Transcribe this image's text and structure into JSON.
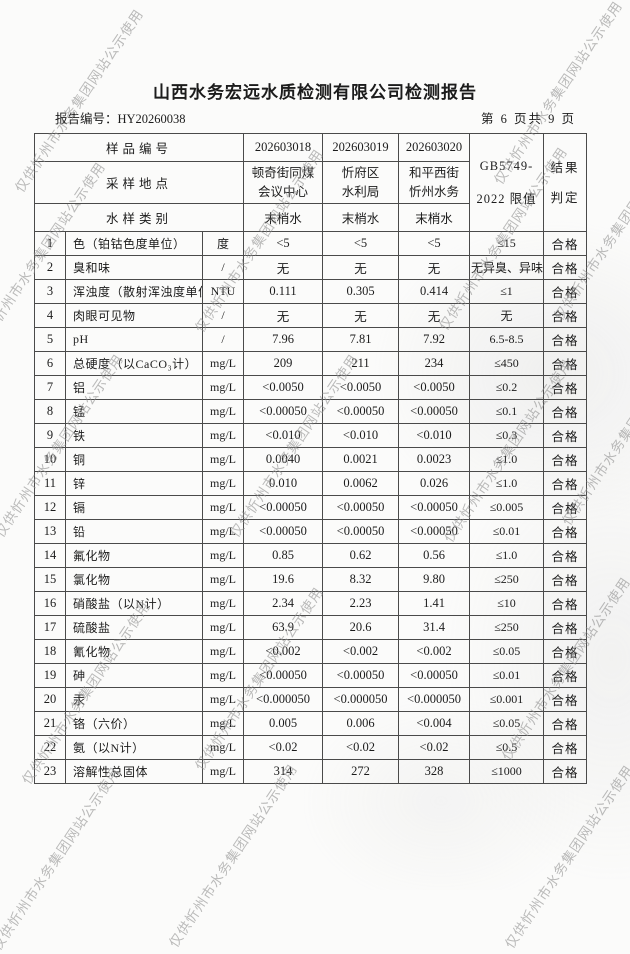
{
  "page": {
    "title": "山西水务宏远水质检测有限公司检测报告",
    "report_number": "报告编号：HY20260038",
    "page_indicator": "第 6 页共 9 页"
  },
  "watermark": {
    "text": "仅供忻州市水务集团网站公示使用",
    "color": "#8f8f8f"
  },
  "table": {
    "header": {
      "sample_id_label": "样品编号",
      "sample_ids": [
        "202603018",
        "202603019",
        "202603020"
      ],
      "location_label": "采样地点",
      "locations": [
        "顿奇街同煤\n会议中心",
        "忻府区\n水利局",
        "和平西街\n忻州水务"
      ],
      "sample_type_label": "水样类别",
      "sample_types": [
        "末梢水",
        "末梢水",
        "末梢水"
      ],
      "standard_limit": "GB5749-\n2022 限值",
      "result_verdict": "结果\n判定"
    },
    "rows": [
      {
        "no": "1",
        "param": "色（铂钴色度单位）",
        "unit": "度",
        "v1": "<5",
        "v2": "<5",
        "v3": "<5",
        "limit": "≤15",
        "verdict": "合格"
      },
      {
        "no": "2",
        "param": "臭和味",
        "unit": "/",
        "v1": "无",
        "v2": "无",
        "v3": "无",
        "limit": "无异臭、异味",
        "verdict": "合格"
      },
      {
        "no": "3",
        "param": "浑浊度（散射浑浊度单位）",
        "unit": "NTU",
        "v1": "0.111",
        "v2": "0.305",
        "v3": "0.414",
        "limit": "≤1",
        "verdict": "合格"
      },
      {
        "no": "4",
        "param": "肉眼可见物",
        "unit": "/",
        "v1": "无",
        "v2": "无",
        "v3": "无",
        "limit": "无",
        "verdict": "合格"
      },
      {
        "no": "5",
        "param": "pH",
        "unit": "/",
        "v1": "7.96",
        "v2": "7.81",
        "v3": "7.92",
        "limit": "6.5-8.5",
        "verdict": "合格"
      },
      {
        "no": "6",
        "param": "总硬度（以CaCO₃计）",
        "unit": "mg/L",
        "v1": "209",
        "v2": "211",
        "v3": "234",
        "limit": "≤450",
        "verdict": "合格"
      },
      {
        "no": "7",
        "param": "铝",
        "unit": "mg/L",
        "v1": "<0.0050",
        "v2": "<0.0050",
        "v3": "<0.0050",
        "limit": "≤0.2",
        "verdict": "合格"
      },
      {
        "no": "8",
        "param": "锰",
        "unit": "mg/L",
        "v1": "<0.00050",
        "v2": "<0.00050",
        "v3": "<0.00050",
        "limit": "≤0.1",
        "verdict": "合格"
      },
      {
        "no": "9",
        "param": "铁",
        "unit": "mg/L",
        "v1": "<0.010",
        "v2": "<0.010",
        "v3": "<0.010",
        "limit": "≤0.3",
        "verdict": "合格"
      },
      {
        "no": "10",
        "param": "铜",
        "unit": "mg/L",
        "v1": "0.0040",
        "v2": "0.0021",
        "v3": "0.0023",
        "limit": "≤1.0",
        "verdict": "合格"
      },
      {
        "no": "11",
        "param": "锌",
        "unit": "mg/L",
        "v1": "0.010",
        "v2": "0.0062",
        "v3": "0.026",
        "limit": "≤1.0",
        "verdict": "合格"
      },
      {
        "no": "12",
        "param": "镉",
        "unit": "mg/L",
        "v1": "<0.00050",
        "v2": "<0.00050",
        "v3": "<0.00050",
        "limit": "≤0.005",
        "verdict": "合格"
      },
      {
        "no": "13",
        "param": "铅",
        "unit": "mg/L",
        "v1": "<0.00050",
        "v2": "<0.00050",
        "v3": "<0.00050",
        "limit": "≤0.01",
        "verdict": "合格"
      },
      {
        "no": "14",
        "param": "氟化物",
        "unit": "mg/L",
        "v1": "0.85",
        "v2": "0.62",
        "v3": "0.56",
        "limit": "≤1.0",
        "verdict": "合格"
      },
      {
        "no": "15",
        "param": "氯化物",
        "unit": "mg/L",
        "v1": "19.6",
        "v2": "8.32",
        "v3": "9.80",
        "limit": "≤250",
        "verdict": "合格"
      },
      {
        "no": "16",
        "param": "硝酸盐（以N计）",
        "unit": "mg/L",
        "v1": "2.34",
        "v2": "2.23",
        "v3": "1.41",
        "limit": "≤10",
        "verdict": "合格"
      },
      {
        "no": "17",
        "param": "硫酸盐",
        "unit": "mg/L",
        "v1": "63.9",
        "v2": "20.6",
        "v3": "31.4",
        "limit": "≤250",
        "verdict": "合格"
      },
      {
        "no": "18",
        "param": "氰化物",
        "unit": "mg/L",
        "v1": "<0.002",
        "v2": "<0.002",
        "v3": "<0.002",
        "limit": "≤0.05",
        "verdict": "合格"
      },
      {
        "no": "19",
        "param": "砷",
        "unit": "mg/L",
        "v1": "<0.00050",
        "v2": "<0.00050",
        "v3": "<0.00050",
        "limit": "≤0.01",
        "verdict": "合格"
      },
      {
        "no": "20",
        "param": "汞",
        "unit": "mg/L",
        "v1": "<0.000050",
        "v2": "<0.000050",
        "v3": "<0.000050",
        "limit": "≤0.001",
        "verdict": "合格"
      },
      {
        "no": "21",
        "param": "铬（六价）",
        "unit": "mg/L",
        "v1": "0.005",
        "v2": "0.006",
        "v3": "<0.004",
        "limit": "≤0.05",
        "verdict": "合格"
      },
      {
        "no": "22",
        "param": "氨（以N计）",
        "unit": "mg/L",
        "v1": "<0.02",
        "v2": "<0.02",
        "v3": "<0.02",
        "limit": "≤0.5",
        "verdict": "合格"
      },
      {
        "no": "23",
        "param": "溶解性总固体",
        "unit": "mg/L",
        "v1": "314",
        "v2": "272",
        "v3": "328",
        "limit": "≤1000",
        "verdict": "合格"
      }
    ]
  }
}
